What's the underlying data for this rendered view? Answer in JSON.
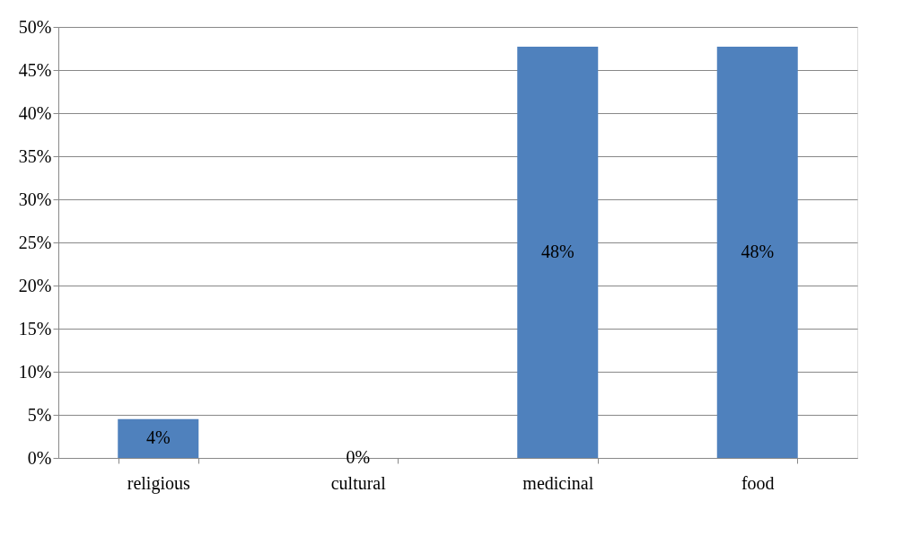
{
  "chart_data": {
    "type": "bar",
    "categories": [
      "religious",
      "cultural",
      "medicinal",
      "food"
    ],
    "values": [
      4.5,
      0,
      47.7,
      47.7
    ],
    "value_labels": [
      "4%",
      "0%",
      "48%",
      "48%"
    ],
    "color": "#4f81bd",
    "ylim": [
      0,
      50
    ],
    "yticks": [
      {
        "value": 0,
        "label": "0%"
      },
      {
        "value": 5,
        "label": "5%"
      },
      {
        "value": 10,
        "label": "10%"
      },
      {
        "value": 15,
        "label": "15%"
      },
      {
        "value": 20,
        "label": "20%"
      },
      {
        "value": 25,
        "label": "25%"
      },
      {
        "value": 30,
        "label": "30%"
      },
      {
        "value": 35,
        "label": "35%"
      },
      {
        "value": 40,
        "label": "40%"
      },
      {
        "value": 45,
        "label": "45%"
      },
      {
        "value": 50,
        "label": "50%"
      }
    ],
    "grid": "y"
  }
}
